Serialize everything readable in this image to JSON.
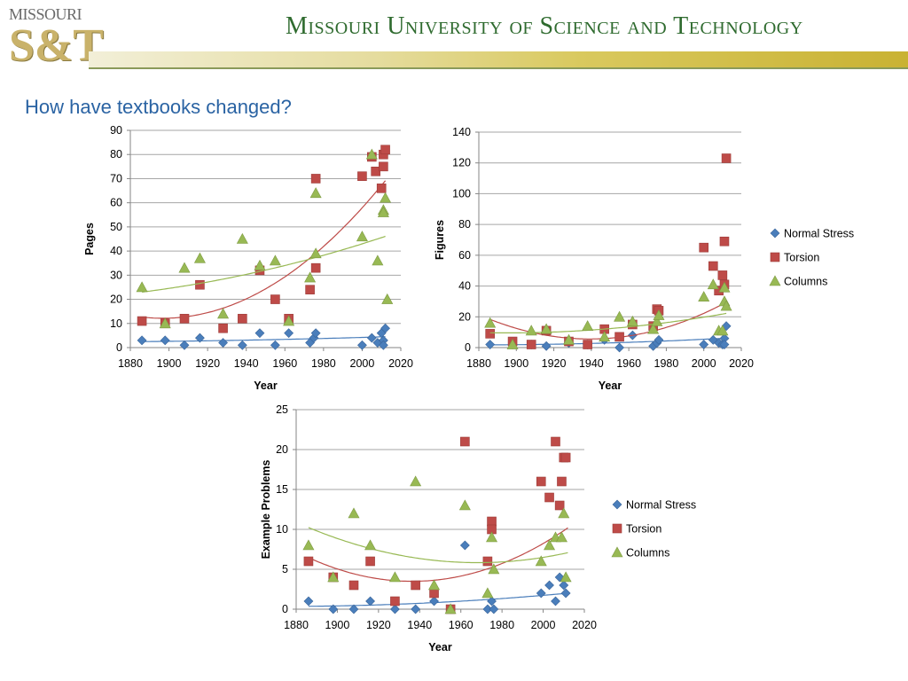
{
  "header": {
    "logo_line1": "MISSOURI",
    "logo_line2": "S&T",
    "university": "Missouri University of Science and Technology"
  },
  "slide_title": "How have textbooks changed?",
  "legend": [
    "Normal Stress",
    "Torsion",
    "Columns"
  ],
  "colors": {
    "normal_stress": "#4a7ebb",
    "torsion": "#be4b48",
    "columns": "#98b954",
    "grid": "#a6a6a6"
  },
  "chart_data": [
    {
      "type": "scatter",
      "xlabel": "Year",
      "ylabel": "Pages",
      "xlim": [
        1880,
        2020
      ],
      "ylim": [
        0,
        90
      ],
      "xticks": [
        1880,
        1900,
        1920,
        1940,
        1960,
        1980,
        2000,
        2020
      ],
      "yticks": [
        0,
        10,
        20,
        30,
        40,
        50,
        60,
        70,
        80,
        90
      ],
      "legend": false,
      "series": [
        {
          "name": "Normal Stress",
          "marker": "diamond",
          "points": [
            [
              1886,
              3
            ],
            [
              1898,
              3
            ],
            [
              1908,
              1
            ],
            [
              1916,
              4
            ],
            [
              1928,
              2
            ],
            [
              1938,
              1
            ],
            [
              1947,
              6
            ],
            [
              1955,
              1
            ],
            [
              1962,
              6
            ],
            [
              1973,
              2
            ],
            [
              1975,
              4
            ],
            [
              1976,
              6
            ],
            [
              2000,
              1
            ],
            [
              2005,
              4
            ],
            [
              2008,
              2
            ],
            [
              2010,
              6
            ],
            [
              2011,
              3
            ],
            [
              2011,
              1
            ],
            [
              2012,
              8
            ]
          ],
          "trend": [
            2.6,
            0.00929,
            6.86e-05
          ]
        },
        {
          "name": "Torsion",
          "marker": "square",
          "points": [
            [
              1886,
              11
            ],
            [
              1898,
              10
            ],
            [
              1908,
              12
            ],
            [
              1916,
              26
            ],
            [
              1928,
              8
            ],
            [
              1938,
              12
            ],
            [
              1947,
              32
            ],
            [
              1955,
              20
            ],
            [
              1962,
              12
            ],
            [
              1973,
              24
            ],
            [
              1976,
              70
            ],
            [
              1976,
              33
            ],
            [
              2000,
              71
            ],
            [
              2005,
              79
            ],
            [
              2007,
              73
            ],
            [
              2010,
              66
            ],
            [
              2011,
              80
            ],
            [
              2011,
              75
            ],
            [
              2012,
              82
            ]
          ],
          "trend": [
            12.2,
            0.028,
            0.00429
          ]
        },
        {
          "name": "Columns",
          "marker": "triangle",
          "points": [
            [
              1886,
              25
            ],
            [
              1898,
              10
            ],
            [
              1908,
              33
            ],
            [
              1916,
              37
            ],
            [
              1928,
              14
            ],
            [
              1938,
              45
            ],
            [
              1947,
              34
            ],
            [
              1955,
              36
            ],
            [
              1962,
              11
            ],
            [
              1973,
              29
            ],
            [
              1976,
              64
            ],
            [
              1976,
              39
            ],
            [
              2000,
              46
            ],
            [
              2005,
              80
            ],
            [
              2008,
              36
            ],
            [
              2011,
              57
            ],
            [
              2011,
              56
            ],
            [
              2012,
              62
            ],
            [
              2013,
              20
            ]
          ],
          "trend": [
            24.53,
            0.1183,
            0.000662
          ]
        }
      ]
    },
    {
      "type": "scatter",
      "xlabel": "Year",
      "ylabel": "Figures",
      "xlim": [
        1880,
        2020
      ],
      "ylim": [
        0,
        140
      ],
      "xticks": [
        1880,
        1900,
        1920,
        1940,
        1960,
        1980,
        2000,
        2020
      ],
      "yticks": [
        0,
        20,
        40,
        60,
        80,
        100,
        120,
        140
      ],
      "legend": true,
      "legend_position": "right",
      "series": [
        {
          "name": "Normal Stress",
          "marker": "diamond",
          "points": [
            [
              1886,
              2
            ],
            [
              1898,
              2
            ],
            [
              1908,
              2
            ],
            [
              1916,
              1
            ],
            [
              1928,
              3
            ],
            [
              1938,
              2
            ],
            [
              1947,
              5
            ],
            [
              1955,
              0
            ],
            [
              1962,
              8
            ],
            [
              1973,
              1
            ],
            [
              1975,
              3
            ],
            [
              1976,
              5
            ],
            [
              2000,
              2
            ],
            [
              2005,
              5
            ],
            [
              2008,
              3
            ],
            [
              2010,
              2
            ],
            [
              2011,
              6
            ],
            [
              2011,
              2
            ],
            [
              2012,
              14
            ]
          ],
          "trend": [
            1.87,
            0.012,
            0.000232
          ]
        },
        {
          "name": "Torsion",
          "marker": "square",
          "points": [
            [
              1886,
              9
            ],
            [
              1898,
              4
            ],
            [
              1908,
              2
            ],
            [
              1916,
              11
            ],
            [
              1928,
              4
            ],
            [
              1938,
              2
            ],
            [
              1947,
              12
            ],
            [
              1955,
              7
            ],
            [
              1962,
              15
            ],
            [
              1973,
              14
            ],
            [
              1975,
              25
            ],
            [
              1976,
              24
            ],
            [
              2000,
              65
            ],
            [
              2005,
              53
            ],
            [
              2008,
              37
            ],
            [
              2010,
              47
            ],
            [
              2011,
              69
            ],
            [
              2011,
              41
            ],
            [
              2012,
              123
            ]
          ],
          "trend": [
            12.51,
            -0.3525,
            0.0045
          ]
        },
        {
          "name": "Columns",
          "marker": "triangle",
          "points": [
            [
              1886,
              16
            ],
            [
              1898,
              2
            ],
            [
              1908,
              11
            ],
            [
              1916,
              12
            ],
            [
              1928,
              5
            ],
            [
              1938,
              14
            ],
            [
              1947,
              7
            ],
            [
              1955,
              20
            ],
            [
              1962,
              17
            ],
            [
              1973,
              12
            ],
            [
              1975,
              17
            ],
            [
              1976,
              21
            ],
            [
              2000,
              33
            ],
            [
              2005,
              41
            ],
            [
              2008,
              11
            ],
            [
              2010,
              11
            ],
            [
              2011,
              30
            ],
            [
              2011,
              39
            ],
            [
              2012,
              27
            ]
          ],
          "trend": [
            9.56,
            0.0094,
            0.000926
          ]
        }
      ]
    },
    {
      "type": "scatter",
      "xlabel": "Year",
      "ylabel": "Example Problems",
      "xlim": [
        1880,
        2020
      ],
      "ylim": [
        0,
        25
      ],
      "xticks": [
        1880,
        1900,
        1920,
        1940,
        1960,
        1980,
        2000,
        2020
      ],
      "yticks": [
        0,
        5,
        10,
        15,
        20,
        25
      ],
      "legend": true,
      "legend_position": "right",
      "series": [
        {
          "name": "Normal Stress",
          "marker": "diamond",
          "points": [
            [
              1886,
              1
            ],
            [
              1898,
              0
            ],
            [
              1908,
              0
            ],
            [
              1916,
              1
            ],
            [
              1928,
              0
            ],
            [
              1938,
              0
            ],
            [
              1947,
              1
            ],
            [
              1955,
              0
            ],
            [
              1962,
              8
            ],
            [
              1973,
              0
            ],
            [
              1975,
              1
            ],
            [
              1976,
              0
            ],
            [
              1999,
              2
            ],
            [
              2003,
              3
            ],
            [
              2006,
              1
            ],
            [
              2008,
              4
            ],
            [
              2010,
              3
            ],
            [
              2011,
              2
            ]
          ],
          "trend": [
            0.41,
            0.0048,
            8.44e-05
          ]
        },
        {
          "name": "Torsion",
          "marker": "square",
          "points": [
            [
              1886,
              6
            ],
            [
              1898,
              4
            ],
            [
              1908,
              3
            ],
            [
              1916,
              6
            ],
            [
              1928,
              1
            ],
            [
              1938,
              3
            ],
            [
              1947,
              2
            ],
            [
              1955,
              0
            ],
            [
              1962,
              21
            ],
            [
              1973,
              6
            ],
            [
              1975,
              11
            ],
            [
              1975,
              10
            ],
            [
              1999,
              16
            ],
            [
              2003,
              14
            ],
            [
              2006,
              21
            ],
            [
              2008,
              13
            ],
            [
              2009,
              16
            ],
            [
              2010,
              19
            ],
            [
              2011,
              19
            ]
          ],
          "trend": [
            5.04,
            -0.0851,
            0.00117
          ]
        },
        {
          "name": "Columns",
          "marker": "triangle",
          "points": [
            [
              1886,
              8
            ],
            [
              1898,
              4
            ],
            [
              1908,
              12
            ],
            [
              1916,
              8
            ],
            [
              1928,
              4
            ],
            [
              1938,
              16
            ],
            [
              1947,
              3
            ],
            [
              1955,
              0
            ],
            [
              1962,
              13
            ],
            [
              1973,
              2
            ],
            [
              1975,
              9
            ],
            [
              1976,
              5
            ],
            [
              1999,
              6
            ],
            [
              2003,
              8
            ],
            [
              2006,
              9
            ],
            [
              2009,
              9
            ],
            [
              2010,
              12
            ],
            [
              2011,
              4
            ]
          ],
          "trend": [
            8.86,
            -0.0888,
            0.000651
          ]
        }
      ]
    }
  ]
}
